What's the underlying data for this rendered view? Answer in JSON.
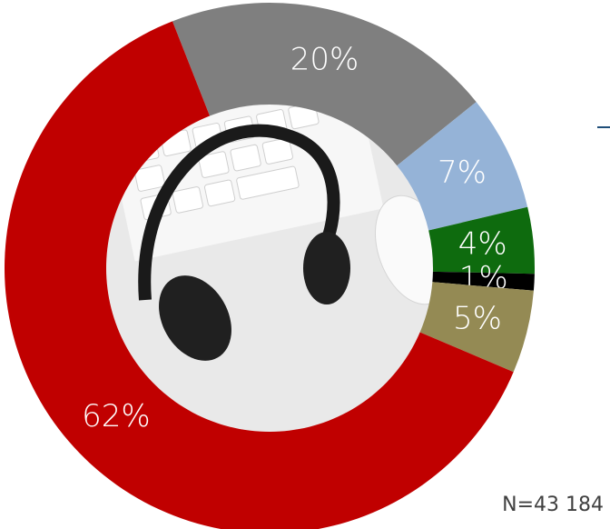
{
  "chart_data": {
    "type": "donut",
    "values": [
      20,
      7,
      4,
      1,
      5,
      62
    ],
    "value_labels": [
      "20%",
      "7%",
      "4%",
      "1%",
      "5%",
      "62%"
    ],
    "colors": [
      "#7f7f7f",
      "#95b3d7",
      "#0e6b0e",
      "#000000",
      "#948a54",
      "#c00000"
    ],
    "note": "N=43 184"
  }
}
